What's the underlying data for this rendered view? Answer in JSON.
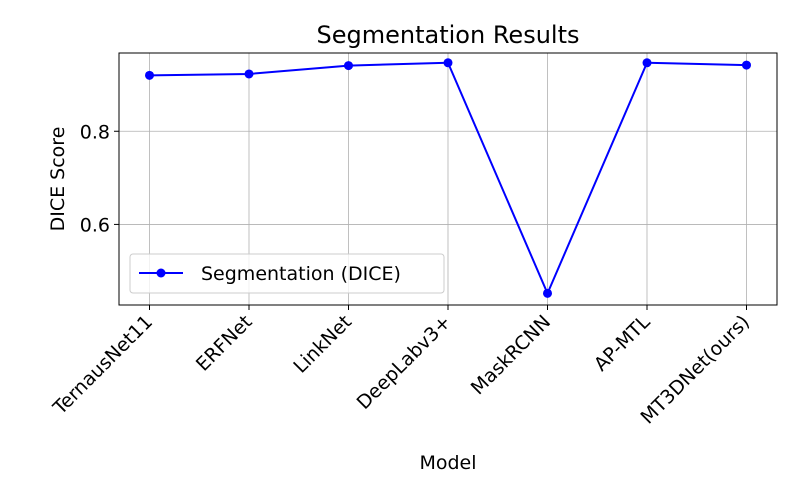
{
  "chart_data": {
    "type": "line",
    "title": "Segmentation Results",
    "xlabel": "Model",
    "ylabel": "DICE Score",
    "categories": [
      "TernausNet11",
      "ERFNet",
      "LinkNet",
      "DeepLabv3+",
      "MaskRCNN",
      "AP-MTL",
      "MT3DNet(ours)"
    ],
    "series": [
      {
        "name": "Segmentation (DICE)",
        "values": [
          0.92,
          0.923,
          0.941,
          0.947,
          0.452,
          0.947,
          0.942
        ],
        "color": "#0000ff",
        "marker": "circle"
      }
    ],
    "ylim": [
      0.427,
      0.968
    ],
    "yticks": [
      0.6,
      0.8
    ],
    "yticklabels": [
      "0.6",
      "0.8"
    ],
    "grid": true,
    "legend_position": "lower-left"
  }
}
